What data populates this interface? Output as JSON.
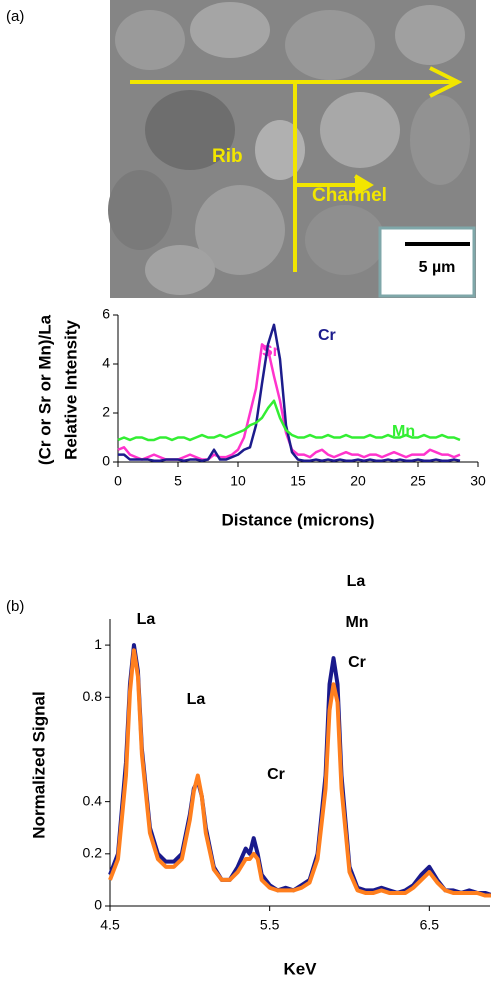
{
  "panels": {
    "a": "(a)",
    "b": "(b)"
  },
  "micrograph": {
    "labels": [
      "Rib",
      "Channel"
    ],
    "scale_bar": "5 µm"
  },
  "chart_data": [
    {
      "type": "line",
      "xlabel": "Distance (microns)",
      "ylabel": [
        "(Cr or Sr or Mn)/La",
        "Relative Intensity"
      ],
      "xlim": [
        0,
        30
      ],
      "xticks": [
        0,
        5,
        10,
        15,
        20,
        25,
        30
      ],
      "ylim": [
        0,
        6
      ],
      "yticks": [
        0,
        2,
        4,
        6
      ],
      "x": [
        0,
        0.5,
        1,
        1.5,
        2,
        2.5,
        3,
        3.5,
        4,
        4.5,
        5,
        5.5,
        6,
        6.5,
        7,
        7.5,
        8,
        8.5,
        9,
        9.5,
        10,
        10.5,
        11,
        11.5,
        12,
        12.5,
        13,
        13.5,
        14,
        14.5,
        15,
        15.5,
        16,
        16.5,
        17,
        17.5,
        18,
        18.5,
        19,
        19.5,
        20,
        20.5,
        21,
        21.5,
        22,
        22.5,
        23,
        23.5,
        24,
        24.5,
        25,
        25.5,
        26,
        26.5,
        27,
        27.5,
        28,
        28.5
      ],
      "series": [
        {
          "name": "Sr",
          "color": "#ff33cc",
          "values": [
            0.5,
            0.6,
            0.3,
            0.2,
            0.1,
            0.2,
            0.3,
            0.2,
            0.1,
            0.1,
            0.1,
            0.2,
            0.3,
            0.2,
            0.1,
            0.1,
            0.3,
            0.2,
            0.2,
            0.3,
            0.5,
            1.0,
            2.0,
            3.0,
            4.8,
            4.6,
            3.5,
            2.5,
            1.2,
            0.5,
            0.3,
            0.3,
            0.2,
            0.4,
            0.5,
            0.3,
            0.2,
            0.3,
            0.4,
            0.3,
            0.3,
            0.2,
            0.3,
            0.3,
            0.2,
            0.3,
            0.4,
            0.3,
            0.2,
            0.3,
            0.3,
            0.3,
            0.5,
            0.4,
            0.3,
            0.3,
            0.2,
            0.3
          ]
        },
        {
          "name": "Cr",
          "color": "#1c1c8c",
          "values": [
            0.3,
            0.3,
            0.1,
            0.1,
            0.1,
            0.1,
            0.05,
            0.05,
            0.1,
            0.1,
            0.1,
            0.05,
            0.1,
            0.1,
            0.05,
            0.1,
            0.5,
            0.1,
            0.1,
            0.2,
            0.3,
            0.5,
            0.6,
            1.5,
            3.2,
            4.8,
            5.6,
            4.2,
            1.5,
            0.4,
            0.1,
            0.05,
            0.05,
            0.1,
            0.05,
            0.1,
            0.05,
            0.1,
            0.05,
            0.05,
            0.1,
            0.05,
            0.1,
            0.05,
            0.05,
            0.1,
            0.05,
            0.1,
            0.05,
            0.05,
            0.1,
            0.05,
            0.05,
            0.1,
            0.05,
            0.05,
            0.1,
            0.05
          ]
        },
        {
          "name": "Mn",
          "color": "#33ee33",
          "values": [
            0.9,
            1.0,
            0.9,
            1.0,
            1.0,
            0.9,
            0.9,
            1.0,
            1.0,
            0.9,
            1.0,
            1.0,
            0.9,
            1.0,
            1.1,
            1.0,
            1.0,
            1.1,
            1.0,
            1.1,
            1.2,
            1.3,
            1.5,
            1.6,
            1.8,
            2.2,
            2.5,
            1.8,
            1.3,
            1.1,
            1.0,
            1.0,
            1.1,
            1.0,
            1.0,
            1.1,
            1.0,
            1.0,
            1.1,
            1.0,
            1.0,
            1.0,
            1.1,
            1.0,
            1.0,
            1.1,
            1.0,
            1.0,
            1.1,
            1.0,
            1.0,
            1.1,
            1.0,
            1.0,
            1.1,
            1.0,
            1.0,
            0.9
          ]
        }
      ]
    },
    {
      "type": "line",
      "xlabel": "KeV",
      "ylabel": "Normalized Signal",
      "xlim": [
        4.5,
        6.88
      ],
      "xticks": [
        4.5,
        5.5,
        6.5
      ],
      "ylim": [
        0,
        1.1
      ],
      "yticks": [
        0,
        0.2,
        0.4,
        0.8,
        1
      ],
      "annotations": [
        "La",
        "La",
        "Cr",
        "La",
        "Mn",
        "Cr"
      ],
      "x": [
        4.5,
        4.55,
        4.6,
        4.625,
        4.65,
        4.675,
        4.7,
        4.75,
        4.8,
        4.85,
        4.9,
        4.95,
        5.0,
        5.025,
        5.05,
        5.075,
        5.1,
        5.15,
        5.2,
        5.25,
        5.3,
        5.35,
        5.375,
        5.4,
        5.425,
        5.45,
        5.5,
        5.55,
        5.6,
        5.65,
        5.7,
        5.75,
        5.8,
        5.85,
        5.875,
        5.9,
        5.925,
        5.95,
        6.0,
        6.05,
        6.1,
        6.15,
        6.2,
        6.25,
        6.3,
        6.35,
        6.4,
        6.45,
        6.5,
        6.55,
        6.6,
        6.65,
        6.7,
        6.75,
        6.8,
        6.85,
        6.9
      ],
      "series": [
        {
          "color": "#1a1a8c",
          "values": [
            0.12,
            0.2,
            0.55,
            0.85,
            1,
            0.9,
            0.6,
            0.3,
            0.2,
            0.17,
            0.17,
            0.2,
            0.35,
            0.45,
            0.48,
            0.42,
            0.3,
            0.15,
            0.1,
            0.1,
            0.15,
            0.22,
            0.2,
            0.26,
            0.2,
            0.12,
            0.08,
            0.06,
            0.07,
            0.06,
            0.08,
            0.1,
            0.2,
            0.5,
            0.85,
            0.95,
            0.85,
            0.5,
            0.15,
            0.07,
            0.06,
            0.06,
            0.07,
            0.06,
            0.05,
            0.06,
            0.08,
            0.12,
            0.15,
            0.1,
            0.06,
            0.06,
            0.05,
            0.06,
            0.05,
            0.05,
            0.04
          ]
        },
        {
          "color": "#ff7f1e",
          "values": [
            0.1,
            0.18,
            0.5,
            0.82,
            0.98,
            0.88,
            0.58,
            0.28,
            0.18,
            0.15,
            0.15,
            0.18,
            0.33,
            0.44,
            0.5,
            0.42,
            0.28,
            0.14,
            0.1,
            0.1,
            0.13,
            0.18,
            0.18,
            0.2,
            0.18,
            0.1,
            0.07,
            0.06,
            0.06,
            0.06,
            0.07,
            0.09,
            0.18,
            0.45,
            0.75,
            0.85,
            0.78,
            0.45,
            0.13,
            0.06,
            0.05,
            0.05,
            0.06,
            0.05,
            0.05,
            0.05,
            0.07,
            0.1,
            0.13,
            0.09,
            0.06,
            0.05,
            0.05,
            0.05,
            0.05,
            0.04,
            0.04
          ]
        }
      ]
    }
  ]
}
